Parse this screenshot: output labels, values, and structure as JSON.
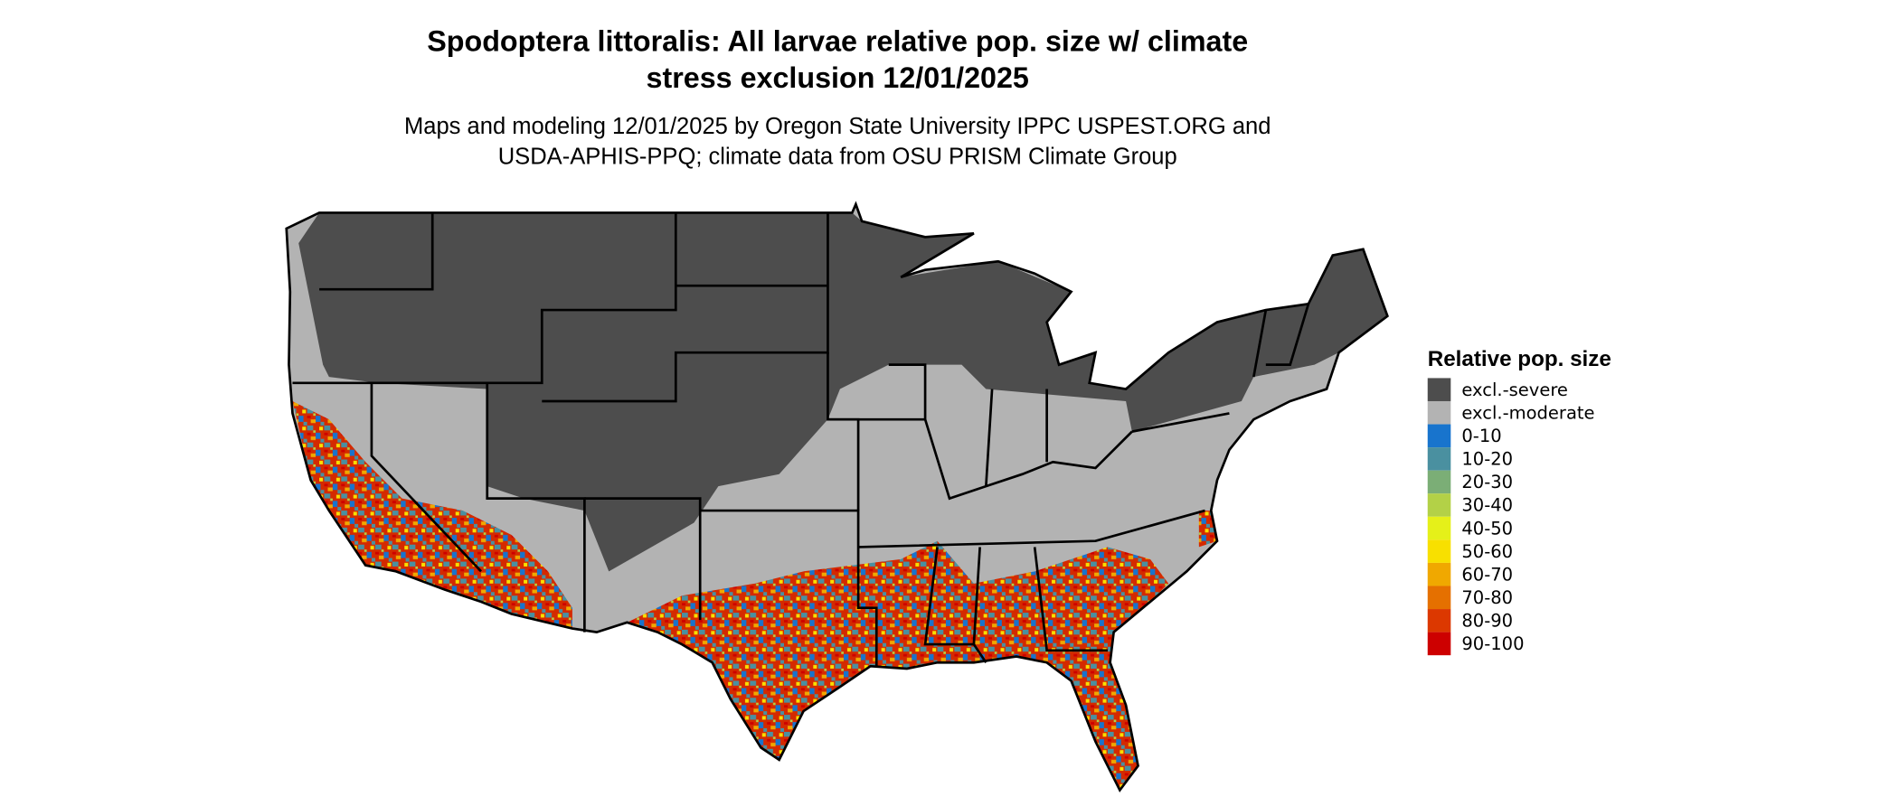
{
  "title_line1": "Spodoptera littoralis: All larvae relative pop. size w/ climate",
  "title_line2": "stress exclusion 12/01/2025",
  "subtitle_line1": "Maps and modeling 12/01/2025 by Oregon State University IPPC USPEST.ORG and",
  "subtitle_line2": "USDA-APHIS-PPQ; climate data from OSU PRISM Climate Group",
  "chart_data": {
    "type": "heatmap",
    "region": "Contiguous United States",
    "legend": {
      "title": "Relative pop. size",
      "placement": "right",
      "items": [
        {
          "label": "excl.-severe",
          "color": "#4d4d4d"
        },
        {
          "label": "excl.-moderate",
          "color": "#b3b3b3"
        },
        {
          "label": "0-10",
          "color": "#1874cd"
        },
        {
          "label": "10-20",
          "color": "#4a90a0"
        },
        {
          "label": "20-30",
          "color": "#7bae76"
        },
        {
          "label": "30-40",
          "color": "#b3d147"
        },
        {
          "label": "40-50",
          "color": "#e5f019"
        },
        {
          "label": "50-60",
          "color": "#f8e000"
        },
        {
          "label": "60-70",
          "color": "#f0a800"
        },
        {
          "label": "70-80",
          "color": "#e57000"
        },
        {
          "label": "80-90",
          "color": "#dc3800"
        },
        {
          "label": "90-100",
          "color": "#cd0000"
        }
      ]
    }
  }
}
